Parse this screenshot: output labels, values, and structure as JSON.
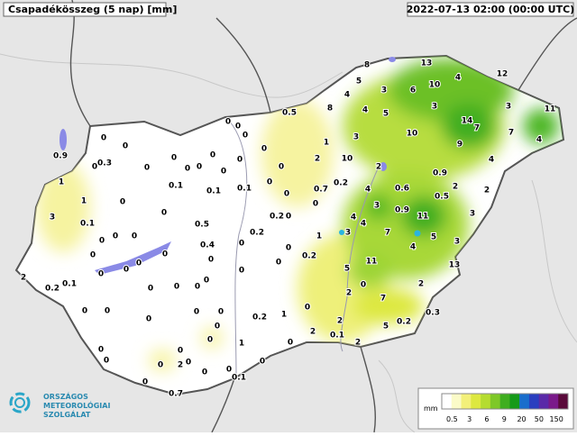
{
  "header": {
    "title": "Csapadékösszeg (5 nap) [mm]",
    "timestamp": "2022-07-13 02:00 (00:00 UTC)"
  },
  "stations": [
    8,
    13,
    5,
    3,
    6,
    10,
    4,
    12,
    4,
    8,
    4,
    5,
    3,
    14,
    7,
    3,
    11,
    10,
    9,
    7,
    4,
    1,
    3,
    2,
    10,
    2,
    0.9,
    4,
    2,
    2,
    0.5,
    4,
    0.6,
    0.5,
    0.9,
    11,
    3,
    3,
    4,
    4,
    7,
    5,
    3,
    4,
    3,
    1,
    0,
    0.2,
    0.7,
    5,
    11,
    13,
    2,
    0,
    7,
    2,
    2,
    5,
    0.2,
    0.3,
    2,
    0.1,
    2,
    0,
    0,
    1,
    0.2,
    0.2,
    0,
    0,
    0.2,
    0.2,
    0,
    0,
    0,
    0,
    0.1,
    0,
    0,
    0,
    0,
    0,
    0,
    0,
    0,
    0.1,
    0,
    0,
    0,
    0,
    0.3,
    0,
    0.9,
    1,
    1,
    3,
    0.1,
    0,
    0,
    0.1,
    0.5,
    0.4,
    0,
    0,
    0,
    0,
    0,
    0,
    0,
    0,
    0,
    0,
    0,
    0.2,
    0.1,
    2,
    0,
    0,
    0,
    0,
    0,
    0,
    0,
    0,
    0,
    0,
    0,
    1,
    0,
    0,
    0,
    2,
    0,
    0,
    0,
    0,
    0,
    0,
    0.1,
    0.7,
    0
  ],
  "legend": {
    "unit": "mm",
    "ticks": [
      0.5,
      3,
      6,
      9,
      20,
      50,
      150
    ],
    "colors": [
      "#ffffff",
      "#fbfbc8",
      "#f3f07a",
      "#dde840",
      "#b5dc30",
      "#7ec828",
      "#3fae20",
      "#169a1a",
      "#1a6ecc",
      "#2a3fbf",
      "#5a2aa8",
      "#7a1a8a",
      "#5a0a3a"
    ]
  },
  "logo": {
    "lines": [
      "ORSZÁGOS",
      "METEOROLÓGIAI",
      "SZOLGÁLAT"
    ]
  }
}
